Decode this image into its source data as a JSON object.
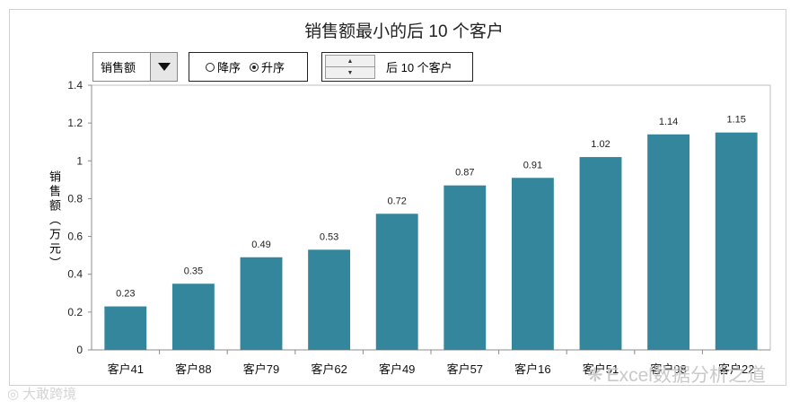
{
  "controls": {
    "dropdown_value": "销售额",
    "sort_options": [
      {
        "label": "降序",
        "selected": false
      },
      {
        "label": "升序",
        "selected": true
      }
    ],
    "count_label": "后 10 个客户",
    "dropdown_icon": "caret-down-icon",
    "spinner_icons": [
      "spinner-up-icon",
      "spinner-down-icon"
    ]
  },
  "watermarks": {
    "left": "大敢跨境",
    "right": "Excel数据分析之道"
  },
  "chart_data": {
    "type": "bar",
    "title": "销售额最小的后 10 个客户",
    "ylabel": "销售额（万元）",
    "xlabel": "",
    "categories": [
      "客户41",
      "客户88",
      "客户79",
      "客户62",
      "客户49",
      "客户57",
      "客户16",
      "客户51",
      "客户98",
      "客户22"
    ],
    "values": [
      0.23,
      0.35,
      0.49,
      0.53,
      0.72,
      0.87,
      0.91,
      1.02,
      1.14,
      1.15
    ],
    "data_labels": [
      "0.23",
      "0.35",
      "0.49",
      "0.53",
      "0.72",
      "0.87",
      "0.91",
      "1.02",
      "1.14",
      "1.15"
    ],
    "yticks": [
      "0",
      "0.2",
      "0.4",
      "0.6",
      "0.8",
      "1",
      "1.2",
      "1.4"
    ],
    "ylim": [
      0,
      1.4
    ],
    "grid": false,
    "legend": false,
    "bar_color": "#33869b"
  }
}
